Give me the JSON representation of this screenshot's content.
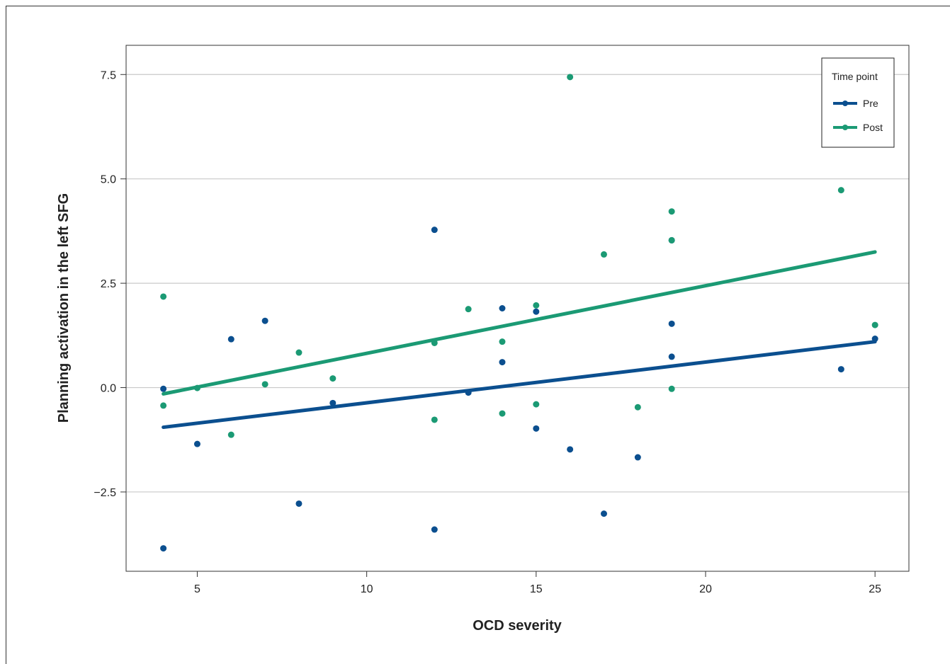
{
  "chart_data": {
    "type": "scatter",
    "title": "",
    "xlabel": "OCD severity",
    "ylabel": "Planning activation in the left SFG",
    "xlim": [
      2.9,
      26.0
    ],
    "ylim": [
      -4.4,
      8.2
    ],
    "x_ticks": [
      5,
      10,
      15,
      20,
      25
    ],
    "y_ticks": [
      -2.5,
      0.0,
      2.5,
      5.0,
      7.5
    ],
    "x_tick_labels": [
      "5",
      "10",
      "15",
      "20",
      "25"
    ],
    "y_tick_labels": [
      "−2.5",
      "0.0",
      "2.5",
      "5.0",
      "7.5"
    ],
    "grid": "horizontal",
    "legend": {
      "title": "Time point",
      "placement": "top-right"
    },
    "series": [
      {
        "name": "Pre",
        "color": "#0b4f8f",
        "points": [
          [
            4,
            -0.03
          ],
          [
            4,
            -3.85
          ],
          [
            5,
            -1.35
          ],
          [
            6,
            1.16
          ],
          [
            7,
            1.6
          ],
          [
            8,
            -2.78
          ],
          [
            9,
            -0.37
          ],
          [
            12,
            3.78
          ],
          [
            12,
            -3.4
          ],
          [
            13,
            -0.12
          ],
          [
            14,
            1.9
          ],
          [
            14,
            0.61
          ],
          [
            15,
            1.82
          ],
          [
            15,
            -0.98
          ],
          [
            16,
            -1.48
          ],
          [
            17,
            -3.02
          ],
          [
            18,
            -1.67
          ],
          [
            19,
            3.53
          ],
          [
            19,
            1.53
          ],
          [
            19,
            0.74
          ],
          [
            24,
            0.44
          ],
          [
            25,
            1.17
          ]
        ],
        "fit_line": [
          [
            4,
            -0.95
          ],
          [
            25,
            1.1
          ]
        ]
      },
      {
        "name": "Post",
        "color": "#1b9a74",
        "points": [
          [
            4,
            2.18
          ],
          [
            4,
            -0.43
          ],
          [
            5,
            -0.01
          ],
          [
            6,
            -1.13
          ],
          [
            7,
            0.08
          ],
          [
            8,
            0.84
          ],
          [
            9,
            0.22
          ],
          [
            12,
            1.07
          ],
          [
            12,
            -0.77
          ],
          [
            13,
            1.88
          ],
          [
            14,
            1.1
          ],
          [
            14,
            -0.62
          ],
          [
            15,
            1.97
          ],
          [
            15,
            -0.4
          ],
          [
            16,
            7.44
          ],
          [
            17,
            3.19
          ],
          [
            18,
            -0.47
          ],
          [
            19,
            4.22
          ],
          [
            19,
            3.53
          ],
          [
            19,
            -0.03
          ],
          [
            24,
            4.73
          ],
          [
            25,
            1.5
          ]
        ],
        "fit_line": [
          [
            4,
            -0.15
          ],
          [
            25,
            3.25
          ]
        ]
      }
    ]
  }
}
